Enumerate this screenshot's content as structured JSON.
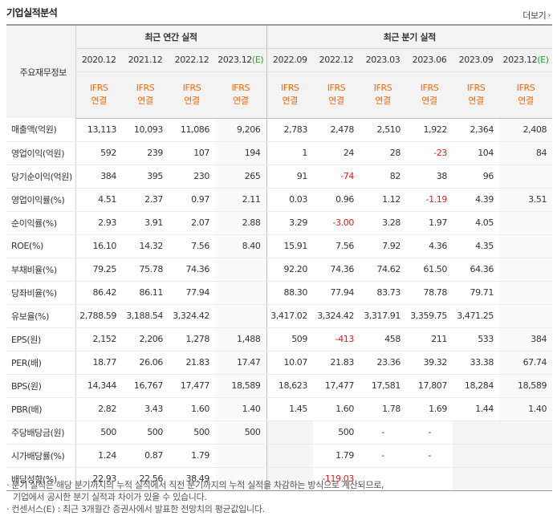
{
  "title": "기업실적분석",
  "more_label": "더보기",
  "header": {
    "label_col": "주요재무정보",
    "annual_group": "최근 연간 실적",
    "quarter_group": "최근 분기 실적",
    "annual_periods": [
      "2020.12",
      "2021.12",
      "2022.12",
      "2023.12"
    ],
    "annual_est_mark": "(E)",
    "quarter_periods": [
      "2022.09",
      "2022.12",
      "2023.03",
      "2023.06",
      "2023.09",
      "2023.12"
    ],
    "quarter_est_mark": "(E)",
    "acct_top": "IFRS",
    "acct_bottom": "연결"
  },
  "rows": [
    {
      "label": "매출액(억원)",
      "annual": [
        "13,113",
        "10,093",
        "11,086",
        "9,206"
      ],
      "quarter": [
        "2,783",
        "2,478",
        "2,510",
        "1,922",
        "2,364",
        "2,408"
      ]
    },
    {
      "label": "영업이익(억원)",
      "annual": [
        "592",
        "239",
        "107",
        "194"
      ],
      "quarter": [
        "1",
        "24",
        "28",
        "-23",
        "104",
        "84"
      ]
    },
    {
      "label": "당기순이익(억원)",
      "annual": [
        "384",
        "395",
        "230",
        "265"
      ],
      "quarter": [
        "91",
        "-74",
        "82",
        "38",
        "96",
        ""
      ]
    },
    {
      "label": "영업이익률(%)",
      "annual": [
        "4.51",
        "2.37",
        "0.97",
        "2.11"
      ],
      "quarter": [
        "0.03",
        "0.96",
        "1.12",
        "-1.19",
        "4.39",
        "3.51"
      ]
    },
    {
      "label": "순이익률(%)",
      "annual": [
        "2.93",
        "3.91",
        "2.07",
        "2.88"
      ],
      "quarter": [
        "3.29",
        "-3.00",
        "3.28",
        "1.97",
        "4.05",
        ""
      ]
    },
    {
      "label": "ROE(%)",
      "annual": [
        "16.10",
        "14.32",
        "7.56",
        "8.40"
      ],
      "quarter": [
        "15.91",
        "7.56",
        "7.92",
        "4.36",
        "4.35",
        ""
      ]
    },
    {
      "label": "부채비율(%)",
      "annual": [
        "79.25",
        "75.78",
        "74.36",
        ""
      ],
      "quarter": [
        "92.20",
        "74.36",
        "74.62",
        "61.50",
        "64.36",
        ""
      ]
    },
    {
      "label": "당좌비율(%)",
      "annual": [
        "86.42",
        "86.11",
        "77.94",
        ""
      ],
      "quarter": [
        "88.30",
        "77.94",
        "83.73",
        "78.78",
        "79.71",
        ""
      ]
    },
    {
      "label": "유보율(%)",
      "annual": [
        "2,788.59",
        "3,188.54",
        "3,324.42",
        ""
      ],
      "quarter": [
        "3,417.02",
        "3,324.42",
        "3,317.91",
        "3,359.75",
        "3,471.25",
        ""
      ]
    },
    {
      "label": "EPS(원)",
      "annual": [
        "2,152",
        "2,206",
        "1,278",
        "1,488"
      ],
      "quarter": [
        "509",
        "-413",
        "458",
        "211",
        "533",
        "384"
      ]
    },
    {
      "label": "PER(배)",
      "annual": [
        "18.77",
        "26.06",
        "21.83",
        "17.47"
      ],
      "quarter": [
        "10.07",
        "21.83",
        "23.36",
        "39.32",
        "33.38",
        "67.74"
      ]
    },
    {
      "label": "BPS(원)",
      "annual": [
        "14,344",
        "16,767",
        "17,477",
        "18,589"
      ],
      "quarter": [
        "18,623",
        "17,477",
        "17,581",
        "17,807",
        "18,284",
        "18,589"
      ]
    },
    {
      "label": "PBR(배)",
      "annual": [
        "2.82",
        "3.43",
        "1.60",
        "1.40"
      ],
      "quarter": [
        "1.45",
        "1.60",
        "1.78",
        "1.69",
        "1.44",
        "1.40"
      ]
    },
    {
      "label": "주당배당금(원)",
      "annual": [
        "500",
        "500",
        "500",
        "500"
      ],
      "quarter": [
        "",
        "500",
        "-",
        "-",
        "",
        ""
      ]
    },
    {
      "label": "시가배당률(%)",
      "annual": [
        "1.24",
        "0.87",
        "1.79",
        ""
      ],
      "quarter": [
        "",
        "1.79",
        "-",
        "-",
        "",
        ""
      ]
    },
    {
      "label": "배당성향(%)",
      "annual": [
        "22.93",
        "22.56",
        "38.49",
        ""
      ],
      "quarter": [
        "",
        "-119.03",
        "",
        "",
        "",
        ""
      ]
    }
  ],
  "notes": [
    "· 분기 실적은 해당 분기까지의 누적 실적에서 직전 분기까지의 누적 실적을 차감하는 방식으로 계산되므로,",
    "  기업에서 공시한 분기 실적과 차이가 있을 수 있습니다.",
    "· 컨센서스(E) : 최근 3개월간 증권사에서 발표한 전망치의 평균값입니다."
  ],
  "colors": {
    "negative": "#f01414",
    "accounting": "#ff6600",
    "estimate": "#22aa22"
  }
}
